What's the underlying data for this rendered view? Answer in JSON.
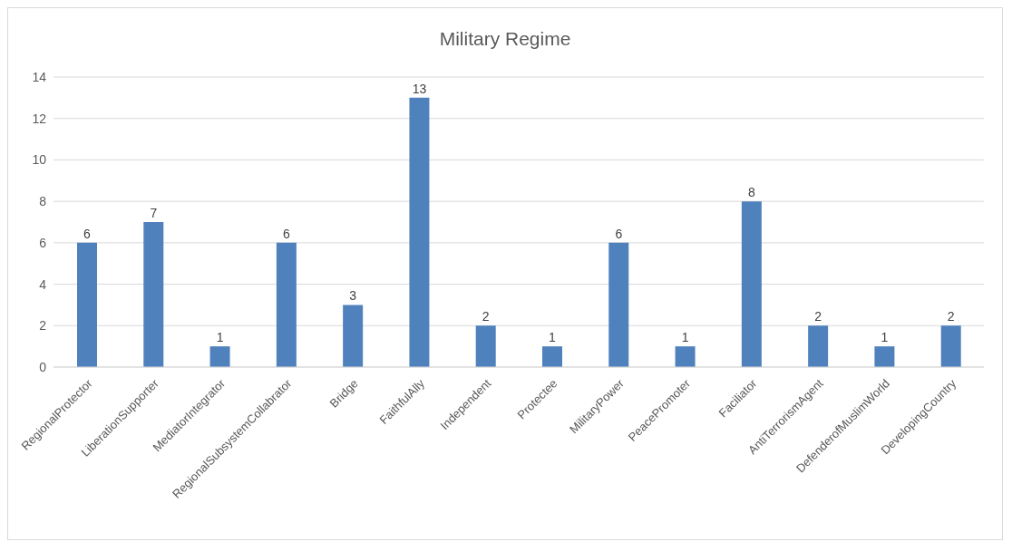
{
  "chart_data": {
    "type": "bar",
    "title": "Military Regime",
    "categories": [
      "RegionalProtector",
      "LiberationSupporter",
      "MediatorIntegrator",
      "RegionalSubsystemCollabrator",
      "Bridge",
      "FaithfulAlly",
      "Independent",
      "Protectee",
      "MilitaryPower",
      "PeacePromoter",
      "Faciliator",
      "AntiTerrorismAgent",
      "DefenderofMuslimWorld",
      "DevelopingCountry"
    ],
    "values": [
      6,
      7,
      1,
      6,
      3,
      13,
      2,
      1,
      6,
      1,
      8,
      2,
      1,
      2
    ],
    "color": "#4f81bd",
    "ylim": [
      0,
      14
    ],
    "yticks": [
      0,
      2,
      4,
      6,
      8,
      10,
      12,
      14
    ],
    "grid": "y",
    "data_labels": true
  }
}
